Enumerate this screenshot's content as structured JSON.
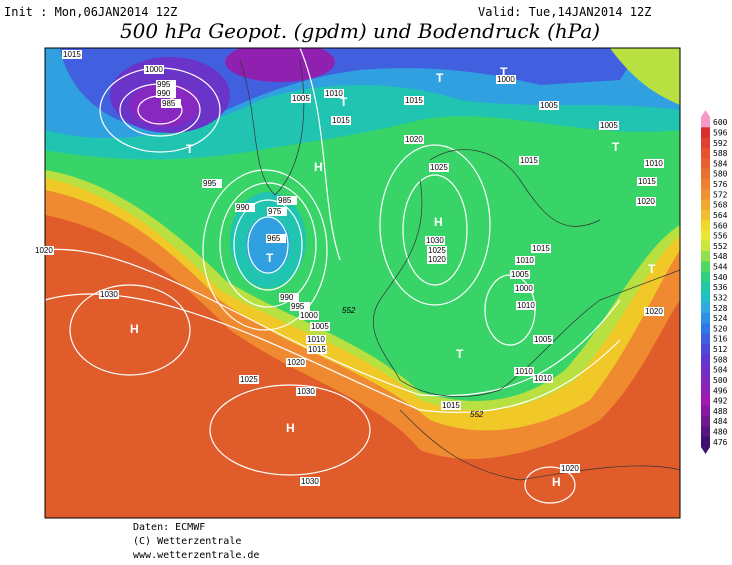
{
  "header": {
    "init": "Init : Mon,06JAN2014 12Z",
    "valid": "Valid: Tue,14JAN2014 12Z",
    "title": "500 hPa Geopot. (gpdm) und Bodendruck (hPa)"
  },
  "colorbar": {
    "labels": [
      600,
      596,
      592,
      588,
      584,
      580,
      576,
      572,
      568,
      564,
      560,
      556,
      552,
      548,
      544,
      540,
      536,
      532,
      528,
      524,
      520,
      516,
      512,
      508,
      504,
      500,
      496,
      492,
      488,
      484,
      480,
      476
    ],
    "colors": [
      "#f59ac8",
      "#d83030",
      "#e04030",
      "#e85030",
      "#e86030",
      "#e87030",
      "#f08030",
      "#f09030",
      "#f0a830",
      "#f0c030",
      "#f0d828",
      "#e8e830",
      "#c8e840",
      "#90e050",
      "#50d860",
      "#30d080",
      "#20c8a8",
      "#20c0c8",
      "#30a8e0",
      "#3090e8",
      "#3078e8",
      "#4060e0",
      "#5048d8",
      "#6038d0",
      "#7030c8",
      "#8028c0",
      "#9020b8",
      "#a018b0",
      "#8818a0",
      "#701890",
      "#581480",
      "#401070"
    ]
  },
  "map": {
    "pressure_labels": [
      "1015",
      "1000",
      "995",
      "990",
      "985",
      "1005",
      "1010",
      "1015",
      "1015",
      "1000",
      "1005",
      "1005",
      "1010",
      "1015",
      "1020",
      "1020",
      "1025",
      "1015",
      "995",
      "990",
      "985",
      "975",
      "965",
      "1030",
      "1025",
      "1020",
      "1015",
      "1010",
      "1005",
      "1000",
      "1010",
      "1005",
      "1010",
      "1010",
      "1015",
      "990",
      "995",
      "1000",
      "1005",
      "1010",
      "1015",
      "1020",
      "1025",
      "1030",
      "1030",
      "1020",
      "1030",
      "1020",
      "1020"
    ],
    "geopotential_labels": [
      "552",
      "552"
    ],
    "centers": [
      "T",
      "T",
      "T",
      "H",
      "H",
      "H",
      "H",
      "T",
      "H",
      "T",
      "T",
      "T",
      "T",
      "T"
    ]
  },
  "footer": {
    "lines": [
      "Daten: ECMWF",
      "(C) Wetterzentrale",
      "www.wetterzentrale.de"
    ]
  }
}
